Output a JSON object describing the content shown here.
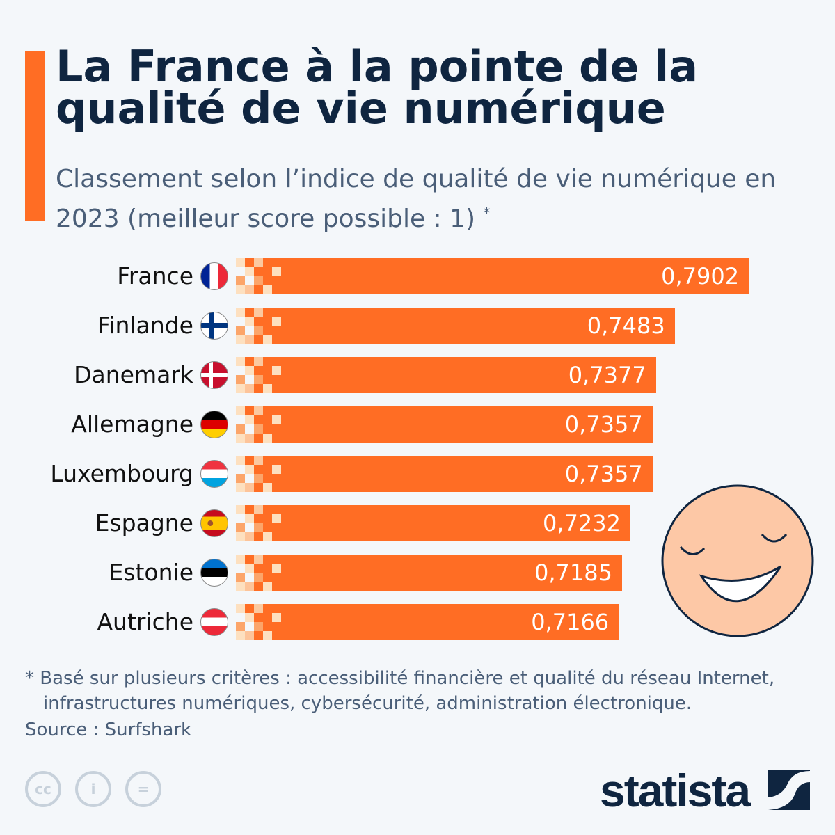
{
  "title": "La France à la pointe de la qualité de vie numérique",
  "subtitle": "Classement selon l’indice de qualité de vie numérique en 2023 (meilleur score possible : 1)",
  "subtitle_mark": "*",
  "footnote": "* Basé sur plusieurs critères : accessibilité financière et qualité du réseau Internet, infrastructures numériques, cybersécurité, administration électronique.",
  "source": "Source : Surfshark",
  "brand": "statista",
  "colors": {
    "bar": "#ff6d24",
    "title": "#0f2540"
  },
  "chart_data": {
    "type": "bar",
    "orientation": "horizontal",
    "xlim": [
      0.5,
      0.8
    ],
    "categories": [
      "France",
      "Finlande",
      "Danemark",
      "Allemagne",
      "Luxembourg",
      "Espagne",
      "Estonie",
      "Autriche"
    ],
    "values": [
      0.7902,
      0.7483,
      0.7377,
      0.7357,
      0.7357,
      0.7232,
      0.7185,
      0.7166
    ],
    "value_labels": [
      "0,7902",
      "0,7483",
      "0,7377",
      "0,7357",
      "0,7357",
      "0,7232",
      "0,7185",
      "0,7166"
    ]
  }
}
